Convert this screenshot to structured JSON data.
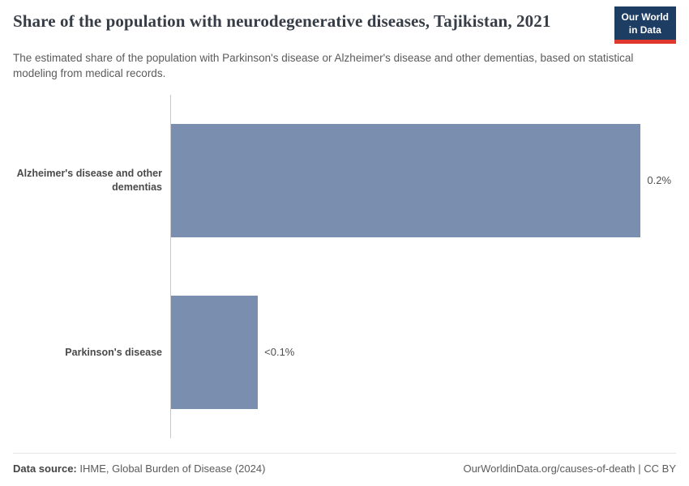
{
  "header": {
    "title": "Share of the population with neurodegenerative diseases, Tajikistan, 2021",
    "subtitle": "The estimated share of the population with Parkinson's disease or Alzheimer's disease and other dementias, based on statistical modeling from medical records.",
    "logo": {
      "line1": "Our World",
      "line2": "in Data",
      "background_color": "#1d3d63",
      "accent_color": "#e0372e"
    }
  },
  "chart_data": {
    "type": "bar",
    "orientation": "horizontal",
    "title": "Share of the population with neurodegenerative diseases, Tajikistan, 2021",
    "categories": [
      "Alzheimer's disease and other dementias",
      "Parkinson's disease"
    ],
    "values": [
      0.2,
      0.037
    ],
    "value_labels": [
      "0.2%",
      "<0.1%"
    ],
    "unit": "%",
    "xlim": [
      0,
      0.215
    ],
    "grid": false,
    "legend": "none",
    "bar_color": "#7a8fb0",
    "axis_line_color": "#c8c8c8"
  },
  "footer": {
    "source_label": "Data source:",
    "source_text": " IHME, Global Burden of Disease (2024)",
    "credit": "OurWorldinData.org/causes-of-death | CC BY"
  }
}
